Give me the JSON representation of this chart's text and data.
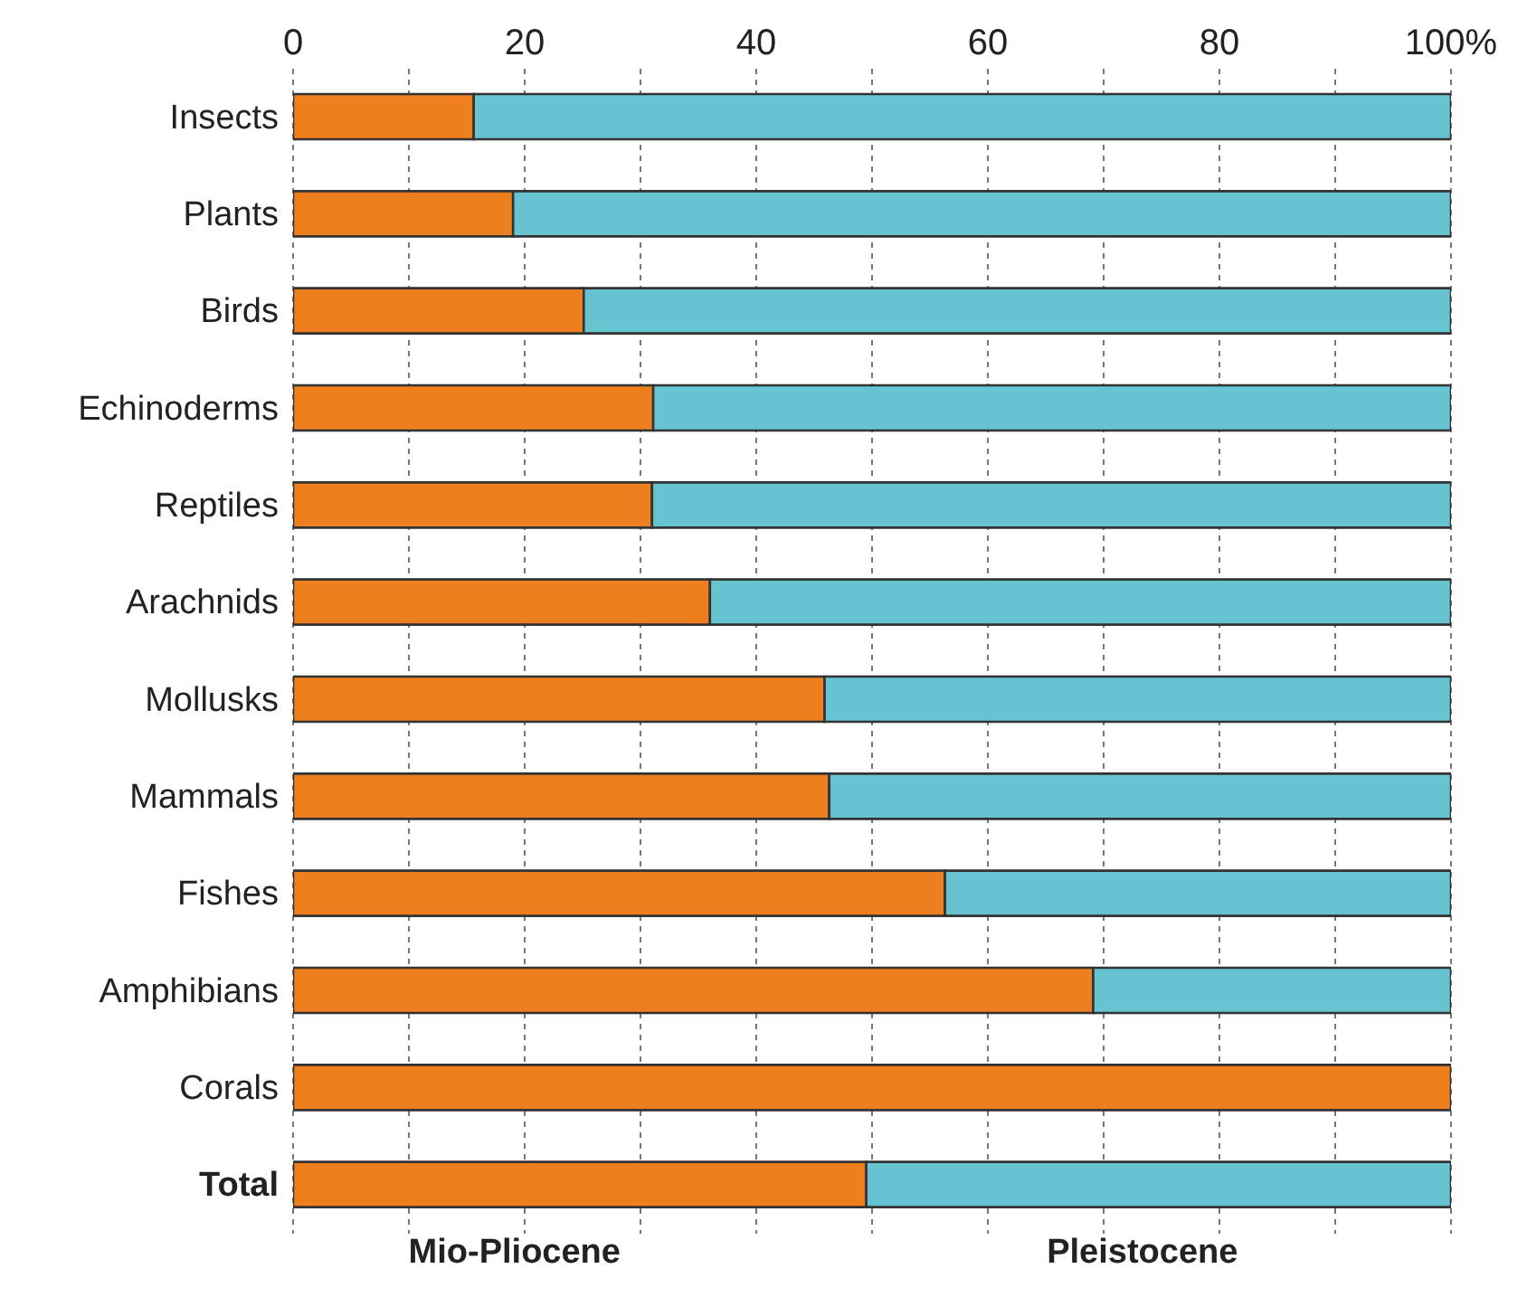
{
  "chart_data": {
    "type": "bar",
    "orientation": "horizontal",
    "stacked": true,
    "categories": [
      "Insects",
      "Plants",
      "Birds",
      "Echinoderms",
      "Reptiles",
      "Arachnids",
      "Mollusks",
      "Mammals",
      "Fishes",
      "Amphibians",
      "Corals",
      "Total"
    ],
    "series": [
      {
        "name": "Mio-Pliocene",
        "color": "#ee7f1e",
        "values": [
          15.6,
          19.0,
          25.1,
          31.1,
          31.0,
          36.0,
          45.9,
          46.3,
          56.3,
          69.1,
          100,
          49.5
        ]
      },
      {
        "name": "Pleistocene",
        "color": "#66c3d0",
        "values": [
          84.4,
          81.0,
          74.9,
          68.9,
          69.0,
          64.0,
          54.1,
          53.7,
          43.7,
          30.9,
          0,
          50.5
        ]
      }
    ],
    "xlim": [
      0,
      100
    ],
    "xticks": [
      0,
      {
        "value": 10,
        "label": null
      },
      20,
      {
        "value": 30,
        "label": null
      },
      40,
      {
        "value": 50,
        "label": null
      },
      60,
      {
        "value": 70,
        "label": null
      },
      80,
      {
        "value": 90,
        "label": null
      },
      {
        "value": 100,
        "label": "100%"
      }
    ],
    "grid": "x",
    "legend": "bottom"
  }
}
